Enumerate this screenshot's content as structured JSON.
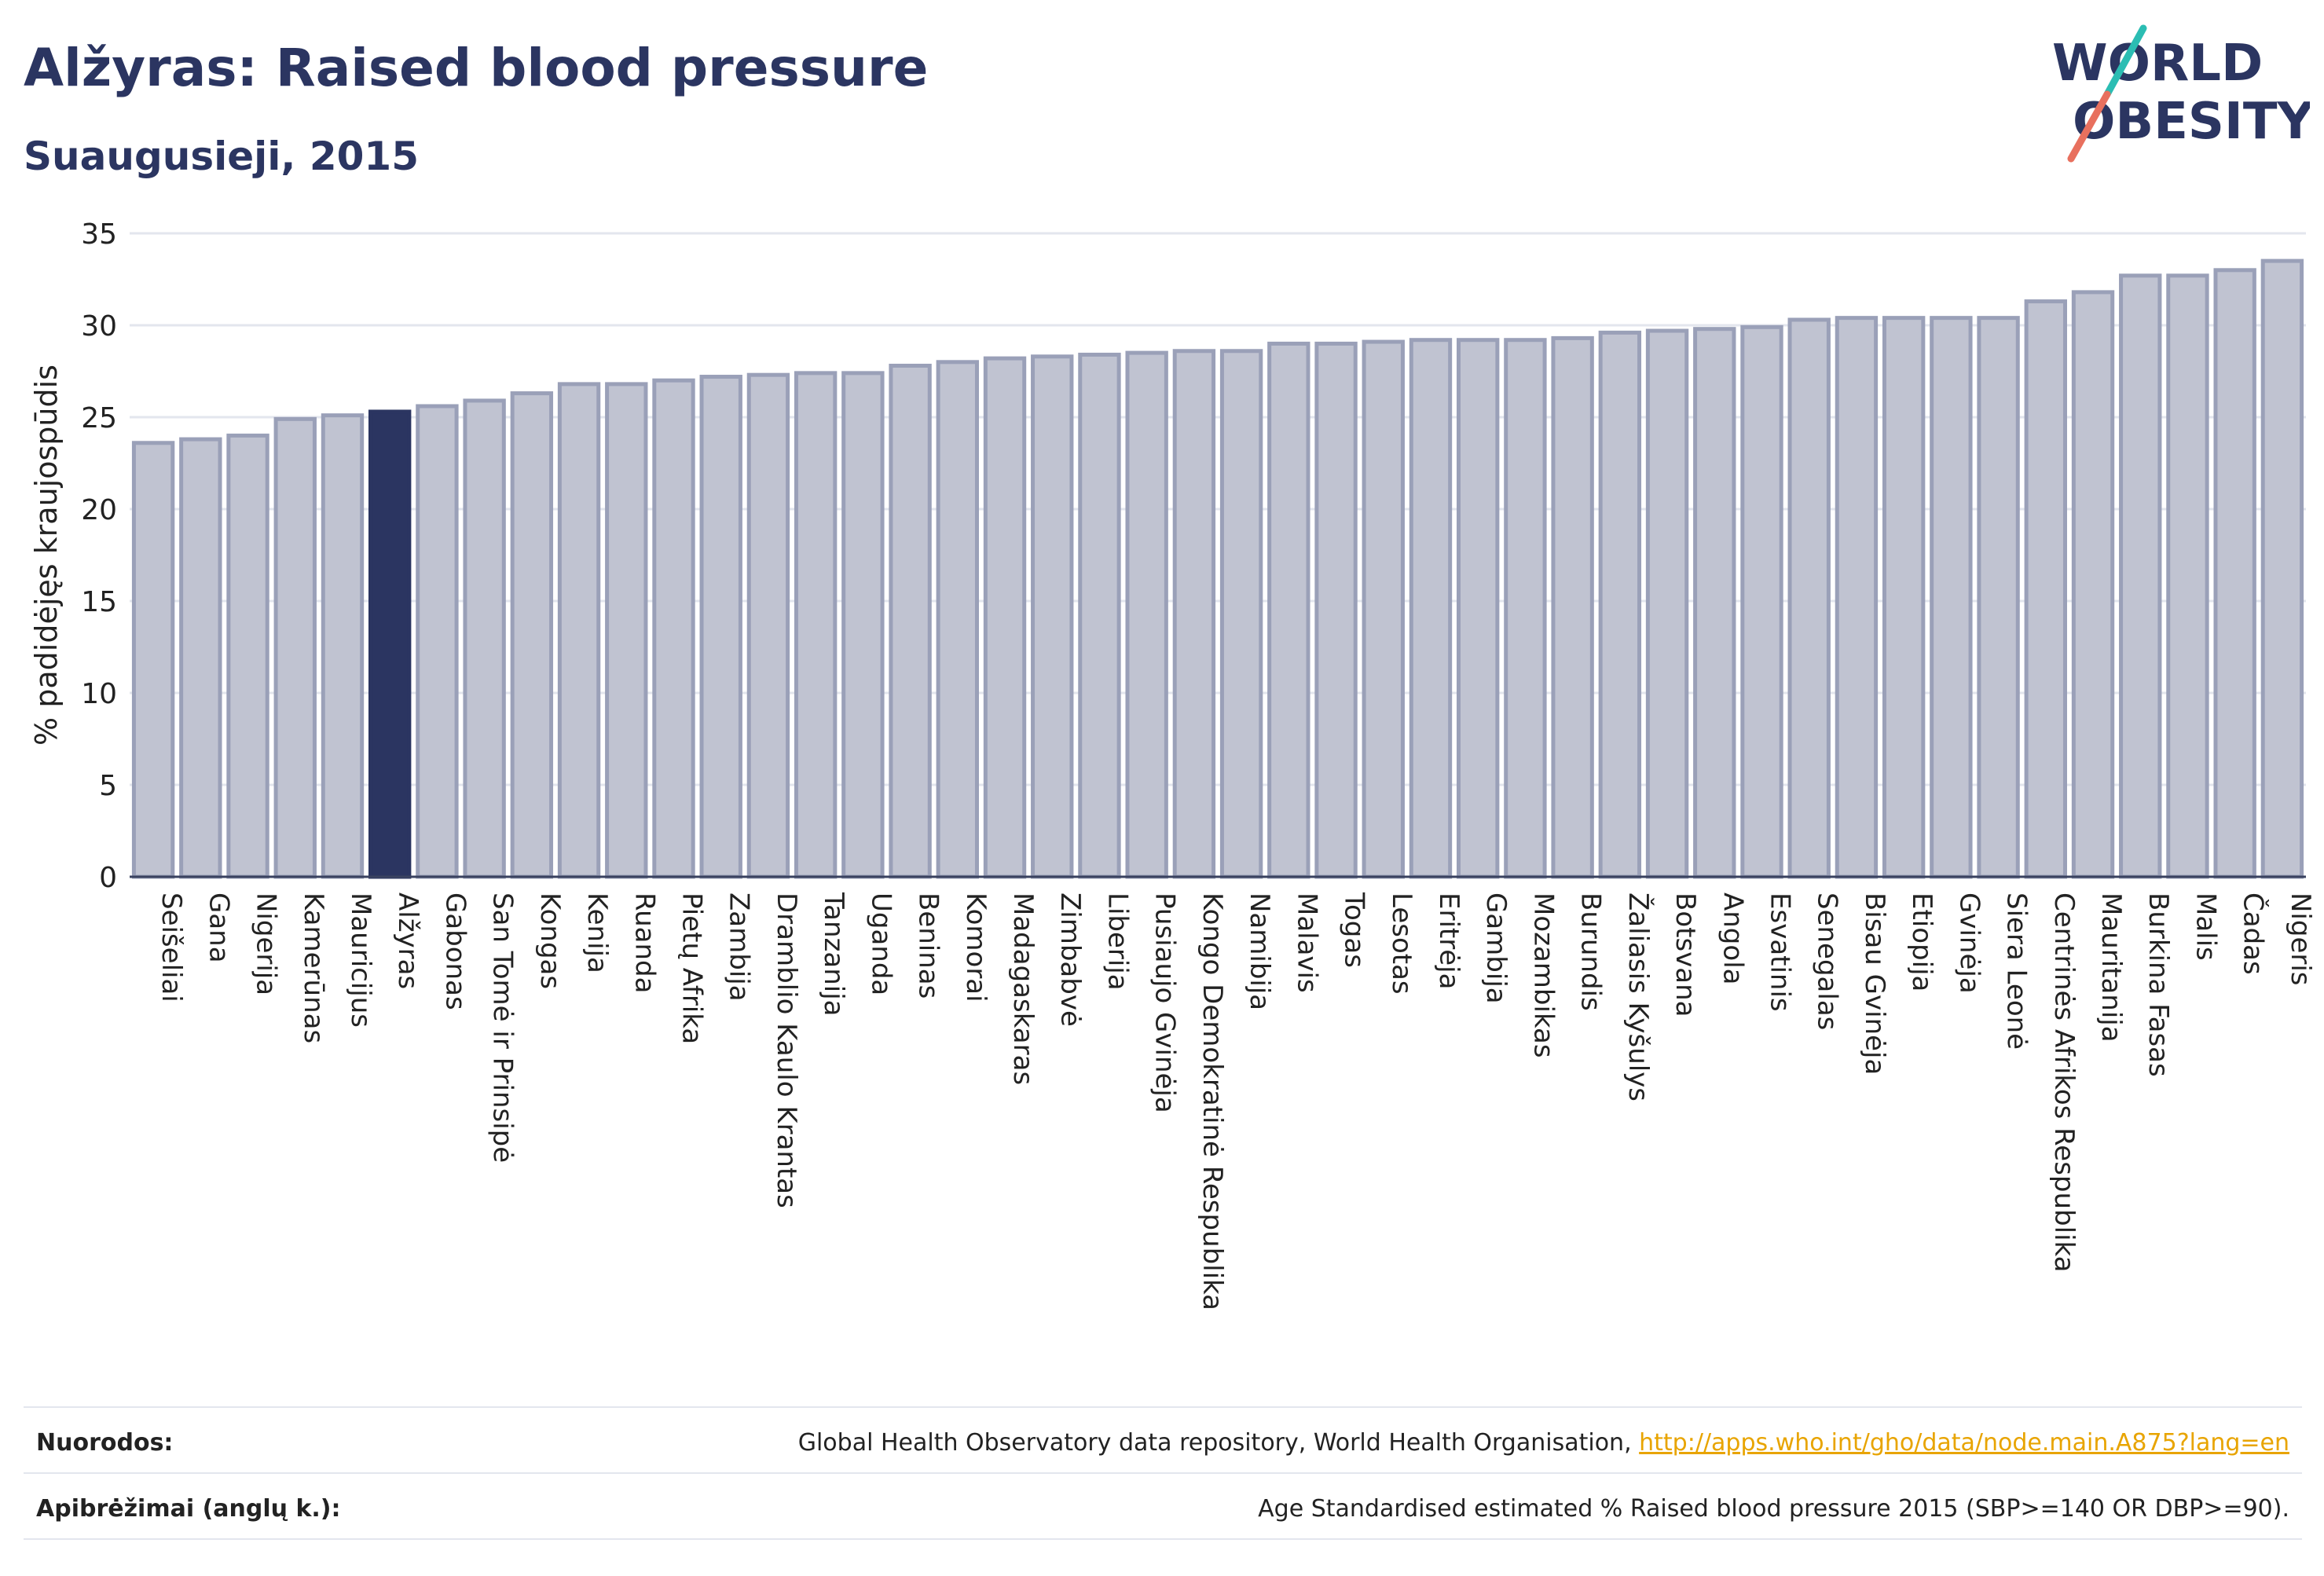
{
  "header": {
    "title": "Alžyras: Raised blood pressure",
    "subtitle": "Suaugusieji, 2015",
    "logo_line1": "WORLD",
    "logo_line2": "OBESITY"
  },
  "colors": {
    "highlight": "#2b3561",
    "bar_fill": "#c0c3d1",
    "bar_stroke": "#9aa0b8",
    "title": "#2b3561",
    "link": "#e8a400",
    "logo_teal": "#2bbdb3",
    "logo_coral": "#e8705e"
  },
  "chart_data": {
    "type": "bar",
    "title": "Alžyras: Raised blood pressure",
    "subtitle": "Suaugusieji, 2015",
    "xlabel": "",
    "ylabel": "% padidėjęs kraujospūdis",
    "ylim": [
      0,
      35
    ],
    "yticks": [
      0,
      5,
      10,
      15,
      20,
      25,
      30,
      35
    ],
    "grid": true,
    "highlight_category": "Alžyras",
    "categories": [
      "Seišeliai",
      "Gana",
      "Nigerija",
      "Kamerūnas",
      "Mauricijus",
      "Alžyras",
      "Gabonas",
      "San Tomė ir Prinsipė",
      "Kongas",
      "Kenija",
      "Ruanda",
      "Pietų Afrika",
      "Zambija",
      "Dramblio Kaulo Krantas",
      "Tanzanija",
      "Uganda",
      "Beninas",
      "Komorai",
      "Madagaskaras",
      "Zimbabvė",
      "Liberija",
      "Pusiaujo Gvinėja",
      "Kongo Demokratinė Respublika",
      "Namibija",
      "Malavis",
      "Togas",
      "Lesotas",
      "Eritrėja",
      "Gambija",
      "Mozambikas",
      "Burundis",
      "Žaliasis Kyšulys",
      "Botsvana",
      "Angola",
      "Esvatinis",
      "Senegalas",
      "Bisau Gvinėja",
      "Etiopija",
      "Gvinėja",
      "Siera Leonė",
      "Centrinės Afrikos Respublika",
      "Mauritanija",
      "Burkina Fasas",
      "Malis",
      "Čadas",
      "Nigeris"
    ],
    "values": [
      23.6,
      23.8,
      24.0,
      24.9,
      25.1,
      25.3,
      25.6,
      25.9,
      26.3,
      26.8,
      26.8,
      27.0,
      27.2,
      27.3,
      27.4,
      27.4,
      27.8,
      28.0,
      28.2,
      28.3,
      28.4,
      28.5,
      28.6,
      28.6,
      29.0,
      29.0,
      29.1,
      29.2,
      29.2,
      29.2,
      29.3,
      29.6,
      29.7,
      29.8,
      29.9,
      30.3,
      30.4,
      30.4,
      30.4,
      30.4,
      31.3,
      31.8,
      32.7,
      32.7,
      33.0,
      33.5
    ]
  },
  "footer": {
    "references_label": "Nuorodos:",
    "references_text": "Global Health Observatory data repository, World Health Organisation, ",
    "references_link": "http://apps.who.int/gho/data/node.main.A875?lang=en",
    "definitions_label": "Apibrėžimai (anglų k.):",
    "definitions_text": "Age Standardised estimated % Raised blood pressure 2015 (SBP>=140 OR DBP>=90)."
  }
}
